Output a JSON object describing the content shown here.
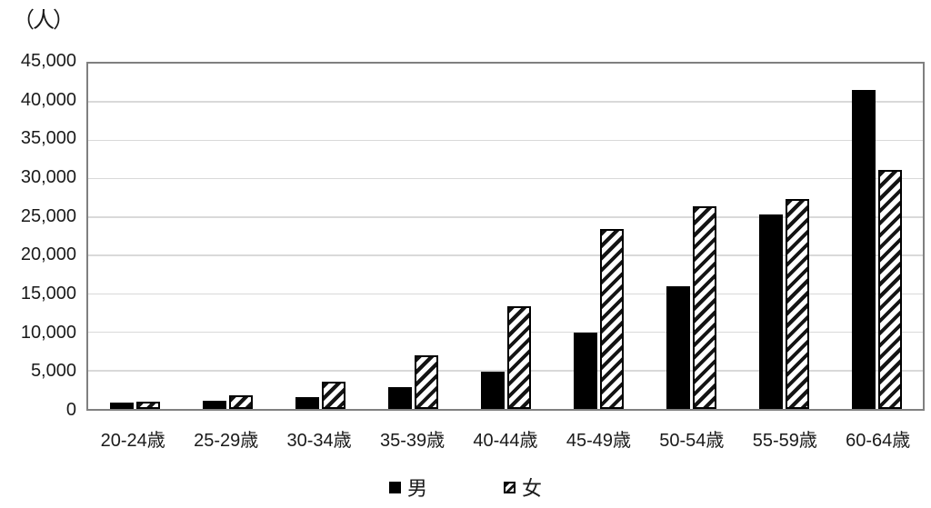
{
  "chart_data": {
    "type": "bar",
    "title": "（人）",
    "categories": [
      "20-24歳",
      "25-29歳",
      "30-34歳",
      "35-39歳",
      "40-44歳",
      "45-49歳",
      "50-54歳",
      "55-59歳",
      "60-64歳"
    ],
    "series": [
      {
        "name": "男",
        "style": "solid-black",
        "values": [
          800,
          1100,
          1600,
          2800,
          4900,
          9900,
          16000,
          25400,
          41600
        ]
      },
      {
        "name": "女",
        "style": "diagonal-hatch",
        "values": [
          1000,
          1800,
          3600,
          7000,
          13400,
          23500,
          26400,
          27300,
          31100
        ]
      }
    ],
    "xlabel": "",
    "ylabel": "（人）",
    "ylim": [
      0,
      45000
    ],
    "ytick_step": 5000,
    "ytick_labels": [
      "0",
      "5,000",
      "10,000",
      "15,000",
      "20,000",
      "25,000",
      "30,000",
      "35,000",
      "40,000",
      "45,000"
    ],
    "grid": true,
    "legend_position": "bottom",
    "colors": {
      "male_bar": "#000000",
      "female_hatch_fg": "#141414",
      "female_hatch_bg": "#ffffff",
      "gridline": "#d9d9d9",
      "frame": "#808080",
      "text": "#1a1a1a"
    }
  }
}
